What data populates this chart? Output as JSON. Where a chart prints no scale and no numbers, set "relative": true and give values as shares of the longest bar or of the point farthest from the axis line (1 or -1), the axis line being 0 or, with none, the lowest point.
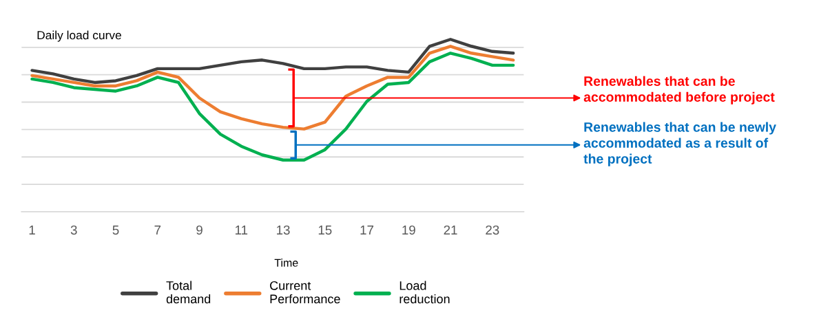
{
  "chart_data": {
    "type": "line",
    "title": "Daily load curve",
    "xlabel": "Time",
    "relative": true,
    "grid": "y",
    "legend": "bottom",
    "marker": "none",
    "line_style": "solid",
    "categories": [
      "1",
      null,
      "3",
      null,
      "5",
      null,
      "7",
      null,
      "9",
      null,
      "11",
      null,
      "13",
      null,
      "15",
      null,
      "17",
      null,
      "19",
      null,
      "21",
      null,
      "23",
      null
    ],
    "series": [
      {
        "name": "Total demand",
        "color": "#404040",
        "values": [
          0.82,
          0.8,
          0.77,
          0.75,
          0.76,
          0.79,
          0.83,
          0.83,
          0.83,
          0.85,
          0.87,
          0.88,
          0.86,
          0.83,
          0.83,
          0.84,
          0.84,
          0.82,
          0.81,
          0.96,
          1.0,
          0.96,
          0.93,
          0.92
        ]
      },
      {
        "name": "Current Performance",
        "color": "#ed7d31",
        "values": [
          0.79,
          0.77,
          0.75,
          0.73,
          0.73,
          0.76,
          0.81,
          0.78,
          0.66,
          0.58,
          0.54,
          0.51,
          0.49,
          0.48,
          0.52,
          0.67,
          0.73,
          0.78,
          0.78,
          0.92,
          0.96,
          0.92,
          0.9,
          0.88
        ]
      },
      {
        "name": "Load reduction",
        "color": "#00b050",
        "values": [
          0.77,
          0.75,
          0.72,
          0.71,
          0.7,
          0.73,
          0.78,
          0.75,
          0.57,
          0.45,
          0.38,
          0.33,
          0.3,
          0.3,
          0.36,
          0.48,
          0.64,
          0.74,
          0.75,
          0.87,
          0.92,
          0.89,
          0.85,
          0.85
        ]
      }
    ],
    "annotations": [
      "Renewables that can be\naccommodated before project",
      "Renewables that can be newly\naccommodated as a result of\nthe project"
    ]
  }
}
